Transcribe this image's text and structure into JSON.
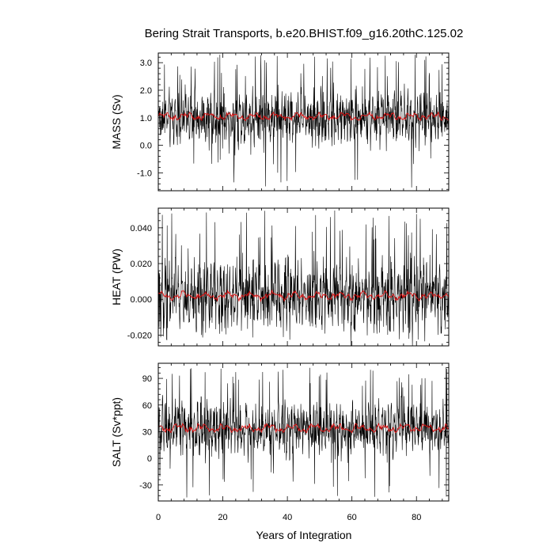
{
  "chart_data": {
    "type": "line",
    "title": "Bering Strait Transports, b.e20.BHIST.f09_g16.20thC.125.02",
    "xlabel": "Years of Integration",
    "xlim": [
      0,
      90
    ],
    "xticks": [
      0,
      20,
      40,
      60,
      80
    ],
    "xtick_labels": [
      "0",
      "20",
      "40",
      "60",
      "80"
    ],
    "colors": {
      "monthly": "#000000",
      "annual": "#e01010"
    },
    "panels": [
      {
        "ylabel": "MASS (Sv)",
        "ylim": [
          -1.65,
          3.35
        ],
        "yticks": [
          -1.0,
          0.0,
          1.0,
          2.0,
          3.0
        ],
        "ytick_labels": [
          "-1.0",
          "0.0",
          "1.0",
          "2.0",
          "3.0"
        ],
        "mean": 1.0,
        "amp": 0.6,
        "spike_up": 3.3,
        "spike_down": -1.6,
        "annual_mean": 1.05,
        "annual_amp": 0.15
      },
      {
        "ylabel": "HEAT (PW)",
        "ylim": [
          -0.026,
          0.051
        ],
        "yticks": [
          -0.02,
          0.0,
          0.02,
          0.04
        ],
        "ytick_labels": [
          "-0.020",
          "0.000",
          "0.020",
          "0.040"
        ],
        "mean": 0.002,
        "amp": 0.012,
        "spike_up": 0.05,
        "spike_down": -0.023,
        "annual_mean": 0.002,
        "annual_amp": 0.0025
      },
      {
        "ylabel": "SALT (Sv*ppt)",
        "ylim": [
          -48,
          107
        ],
        "yticks": [
          -30,
          0,
          30,
          60,
          90
        ],
        "ytick_labels": [
          "-30",
          "0",
          "30",
          "60",
          "90"
        ],
        "mean": 33,
        "amp": 18,
        "spike_up": 105,
        "spike_down": -47,
        "annual_mean": 34,
        "annual_amp": 5
      }
    ]
  }
}
